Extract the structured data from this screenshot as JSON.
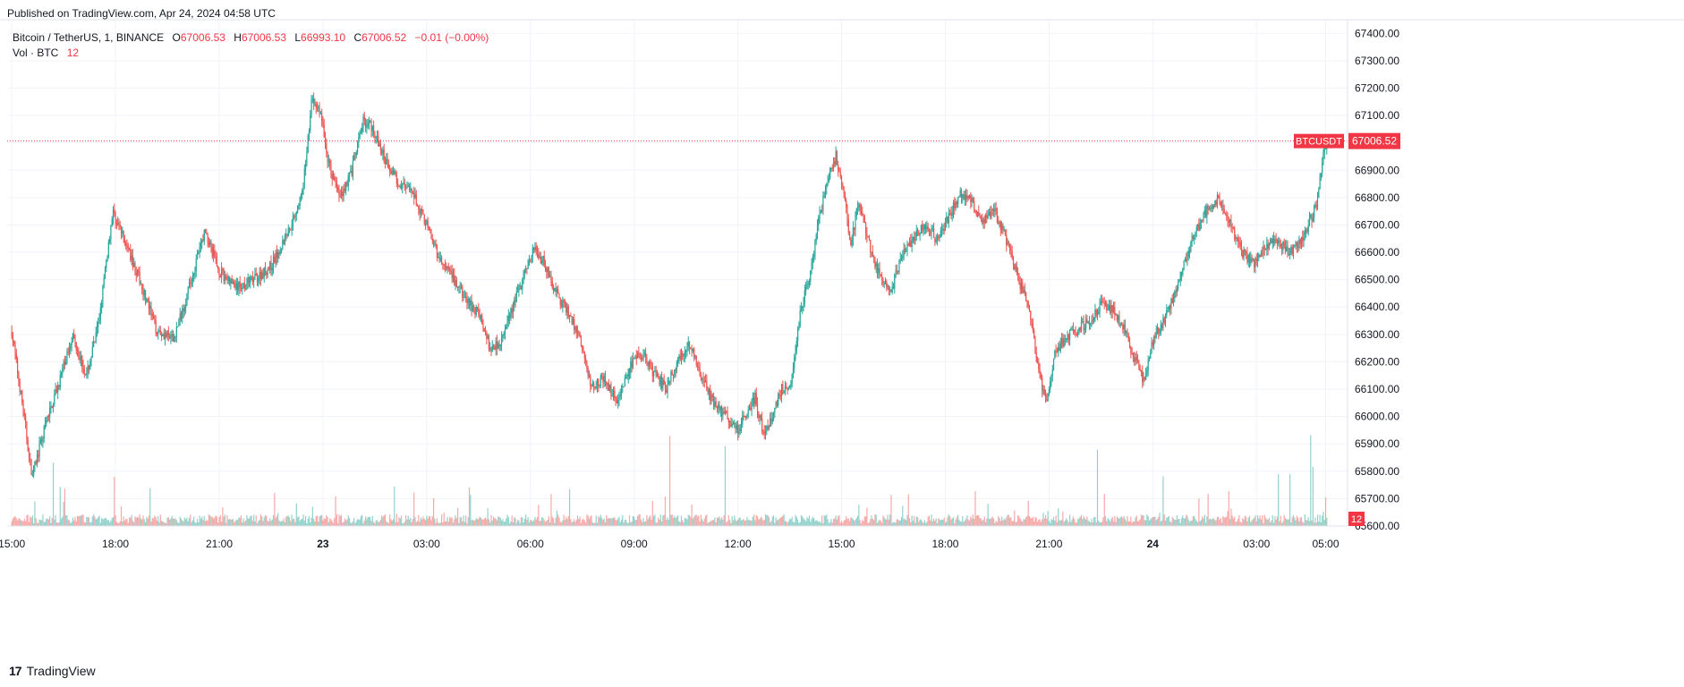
{
  "header": {
    "published": "Published on TradingView.com, Apr 24, 2024 04:58 UTC"
  },
  "legend": {
    "symbol": "Bitcoin / TetherUS, 1, BINANCE",
    "open_label": "O",
    "open": "67006.53",
    "high_label": "H",
    "high": "67006.53",
    "low_label": "L",
    "low": "66993.10",
    "close_label": "C",
    "close": "67006.52",
    "change": "−0.01 (−0.00%)",
    "vol_label": "Vol · BTC",
    "vol_value": "12"
  },
  "footer": {
    "brand": "TradingView",
    "logo": "17"
  },
  "colors": {
    "up": "#26a69a",
    "down": "#ef5350",
    "price_tag": "#f23645",
    "grid": "#f0f3fa"
  },
  "chart_data": {
    "type": "candlestick",
    "symbol_tag": "BTCUSDT",
    "last_price": 67006.52,
    "last_price_label": "67006.52",
    "volume_tag": "12",
    "ylim": [
      65600,
      67450
    ],
    "y_ticks": [
      65600,
      65700,
      65800,
      65900,
      66000,
      66100,
      66200,
      66300,
      66400,
      66500,
      66600,
      66700,
      66800,
      66900,
      67000,
      67100,
      67200,
      67300,
      67400
    ],
    "y_tick_labels": [
      "65600.00",
      "65700.00",
      "65800.00",
      "65900.00",
      "66000.00",
      "66100.00",
      "66200.00",
      "66300.00",
      "66400.00",
      "66500.00",
      "66600.00",
      "66700.00",
      "66800.00",
      "66900.00",
      "67000.00",
      "67100.00",
      "67200.00",
      "67300.00",
      "67400.00"
    ],
    "x_ticks": [
      {
        "label": "15:00",
        "t": 0,
        "bold": false
      },
      {
        "label": "18:00",
        "t": 180,
        "bold": false
      },
      {
        "label": "21:00",
        "t": 360,
        "bold": false
      },
      {
        "label": "23",
        "t": 540,
        "bold": true
      },
      {
        "label": "03:00",
        "t": 720,
        "bold": false
      },
      {
        "label": "06:00",
        "t": 900,
        "bold": false
      },
      {
        "label": "09:00",
        "t": 1080,
        "bold": false
      },
      {
        "label": "12:00",
        "t": 1260,
        "bold": false
      },
      {
        "label": "15:00",
        "t": 1440,
        "bold": false
      },
      {
        "label": "18:00",
        "t": 1620,
        "bold": false
      },
      {
        "label": "21:00",
        "t": 1800,
        "bold": false
      },
      {
        "label": "24",
        "t": 1980,
        "bold": true
      },
      {
        "label": "03:00",
        "t": 2160,
        "bold": false
      },
      {
        "label": "05:00",
        "t": 2280,
        "bold": false
      }
    ],
    "t_range": [
      -8,
      2318
    ],
    "price_path": [
      [
        0,
        66310
      ],
      [
        20,
        66020
      ],
      [
        35,
        65780
      ],
      [
        60,
        65980
      ],
      [
        90,
        66180
      ],
      [
        105,
        66300
      ],
      [
        130,
        66150
      ],
      [
        150,
        66330
      ],
      [
        175,
        66750
      ],
      [
        200,
        66620
      ],
      [
        225,
        66480
      ],
      [
        250,
        66320
      ],
      [
        280,
        66280
      ],
      [
        305,
        66450
      ],
      [
        335,
        66680
      ],
      [
        360,
        66530
      ],
      [
        390,
        66470
      ],
      [
        420,
        66500
      ],
      [
        450,
        66550
      ],
      [
        480,
        66680
      ],
      [
        505,
        66820
      ],
      [
        520,
        67150
      ],
      [
        535,
        67120
      ],
      [
        550,
        66920
      ],
      [
        570,
        66800
      ],
      [
        590,
        66900
      ],
      [
        610,
        67080
      ],
      [
        625,
        67060
      ],
      [
        645,
        66950
      ],
      [
        670,
        66860
      ],
      [
        700,
        66800
      ],
      [
        720,
        66700
      ],
      [
        740,
        66580
      ],
      [
        760,
        66520
      ],
      [
        790,
        66420
      ],
      [
        810,
        66380
      ],
      [
        830,
        66250
      ],
      [
        850,
        66280
      ],
      [
        870,
        66400
      ],
      [
        890,
        66520
      ],
      [
        905,
        66610
      ],
      [
        925,
        66560
      ],
      [
        945,
        66450
      ],
      [
        965,
        66380
      ],
      [
        985,
        66290
      ],
      [
        1005,
        66110
      ],
      [
        1025,
        66140
      ],
      [
        1050,
        66060
      ],
      [
        1075,
        66190
      ],
      [
        1095,
        66230
      ],
      [
        1110,
        66170
      ],
      [
        1135,
        66100
      ],
      [
        1155,
        66200
      ],
      [
        1175,
        66270
      ],
      [
        1195,
        66160
      ],
      [
        1215,
        66060
      ],
      [
        1240,
        66000
      ],
      [
        1260,
        65950
      ],
      [
        1275,
        66020
      ],
      [
        1290,
        66070
      ],
      [
        1305,
        65930
      ],
      [
        1320,
        66000
      ],
      [
        1335,
        66100
      ],
      [
        1350,
        66110
      ],
      [
        1370,
        66400
      ],
      [
        1385,
        66520
      ],
      [
        1400,
        66710
      ],
      [
        1415,
        66860
      ],
      [
        1430,
        66950
      ],
      [
        1445,
        66800
      ],
      [
        1455,
        66630
      ],
      [
        1470,
        66780
      ],
      [
        1490,
        66620
      ],
      [
        1505,
        66520
      ],
      [
        1525,
        66450
      ],
      [
        1545,
        66600
      ],
      [
        1565,
        66650
      ],
      [
        1585,
        66700
      ],
      [
        1605,
        66650
      ],
      [
        1625,
        66720
      ],
      [
        1645,
        66820
      ],
      [
        1665,
        66790
      ],
      [
        1685,
        66710
      ],
      [
        1705,
        66750
      ],
      [
        1725,
        66650
      ],
      [
        1745,
        66510
      ],
      [
        1765,
        66400
      ],
      [
        1780,
        66180
      ],
      [
        1795,
        66050
      ],
      [
        1810,
        66230
      ],
      [
        1830,
        66290
      ],
      [
        1850,
        66320
      ],
      [
        1870,
        66350
      ],
      [
        1890,
        66410
      ],
      [
        1910,
        66390
      ],
      [
        1930,
        66320
      ],
      [
        1950,
        66200
      ],
      [
        1965,
        66130
      ],
      [
        1980,
        66270
      ],
      [
        2000,
        66360
      ],
      [
        2020,
        66460
      ],
      [
        2040,
        66600
      ],
      [
        2055,
        66680
      ],
      [
        2075,
        66760
      ],
      [
        2095,
        66800
      ],
      [
        2115,
        66700
      ],
      [
        2135,
        66600
      ],
      [
        2155,
        66560
      ],
      [
        2175,
        66620
      ],
      [
        2195,
        66650
      ],
      [
        2215,
        66600
      ],
      [
        2235,
        66640
      ],
      [
        2250,
        66700
      ],
      [
        2265,
        66780
      ],
      [
        2275,
        66950
      ],
      [
        2282,
        67006.52
      ]
    ]
  }
}
